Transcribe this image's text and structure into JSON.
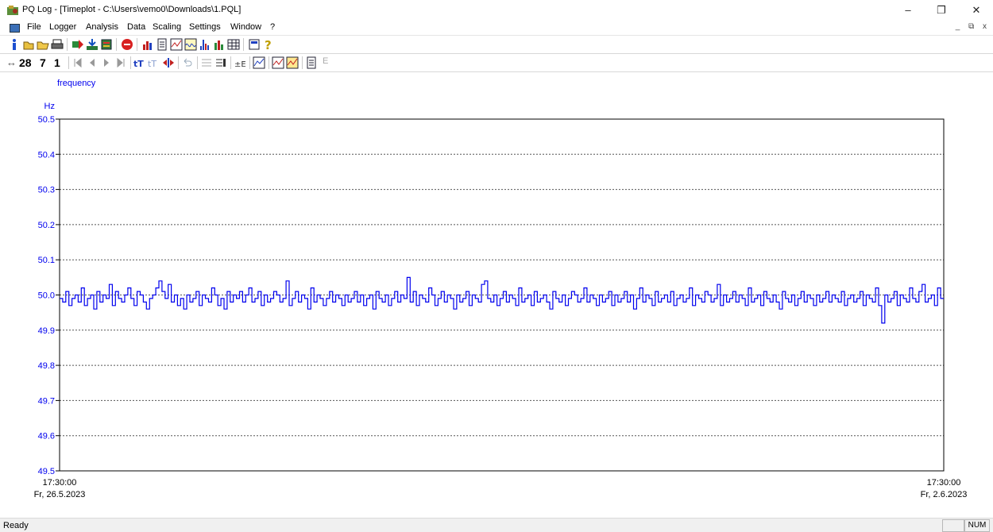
{
  "window": {
    "title": "PQ Log - [Timeplot - C:\\Users\\vemo0\\Downloads\\1.PQL]",
    "minimize_glyph": "–",
    "restore_glyph": "❐",
    "close_glyph": "✕"
  },
  "menu": {
    "items": [
      "File",
      "Logger",
      "Analysis",
      "Data",
      "Scaling",
      "Settings",
      "Window",
      "?"
    ],
    "mdi_controls": "_ ⧉ x"
  },
  "toolbar2": {
    "arrows": "↔",
    "zoom_28": "28",
    "zoom_7": "7",
    "zoom_1": "1",
    "e_label": "E"
  },
  "status": {
    "text": "Ready",
    "num": "NUM"
  },
  "chart_data": {
    "type": "line",
    "title": "frequency",
    "unit": "Hz",
    "ylim": [
      49.5,
      50.5
    ],
    "yticks": [
      "50.5",
      "50.4",
      "50.3",
      "50.2",
      "50.1",
      "50.0",
      "49.9",
      "49.8",
      "49.7",
      "49.6",
      "49.5"
    ],
    "x_start": {
      "time": "17:30:00",
      "date": "Fr, 26.5.2023"
    },
    "x_end": {
      "time": "17:30:00",
      "date": "Fr, 2.6.2023"
    },
    "grid": "dotted horizontal",
    "series": [
      {
        "color": "#0000ee",
        "stepped": true,
        "values": [
          49.99,
          49.98,
          50.01,
          49.97,
          49.99,
          50.0,
          49.98,
          50.02,
          49.97,
          49.99,
          50.0,
          49.96,
          50.01,
          49.98,
          50.0,
          49.99,
          50.03,
          49.97,
          50.01,
          49.99,
          49.98,
          50.0,
          50.02,
          49.99,
          49.97,
          50.01,
          50.0,
          49.98,
          49.96,
          49.99,
          50.0,
          50.02,
          50.04,
          50.01,
          49.99,
          50.03,
          49.98,
          50.0,
          49.97,
          49.99,
          49.96,
          50.0,
          49.98,
          49.99,
          50.01,
          49.97,
          50.0,
          49.99,
          49.98,
          50.02,
          50.0,
          49.97,
          49.99,
          49.96,
          50.01,
          49.98,
          50.0,
          49.99,
          50.01,
          49.98,
          50.0,
          50.02,
          49.98,
          49.99,
          50.01,
          49.97,
          50.0,
          49.98,
          49.99,
          50.01,
          50.0,
          49.98,
          49.99,
          50.04,
          49.97,
          49.99,
          50.01,
          49.98,
          50.0,
          49.99,
          49.96,
          50.02,
          49.98,
          50.0,
          49.99,
          49.97,
          49.99,
          50.01,
          49.98,
          50.0,
          49.99,
          49.97,
          50.0,
          49.98,
          49.99,
          50.01,
          49.98,
          50.0,
          49.97,
          49.99,
          50.0,
          49.96,
          50.01,
          49.99,
          49.98,
          50.0,
          49.97,
          49.99,
          50.01,
          49.98,
          50.0,
          49.99,
          50.05,
          49.98,
          50.01,
          49.97,
          50.0,
          49.99,
          49.98,
          50.02,
          50.0,
          49.97,
          49.99,
          50.01,
          49.98,
          50.0,
          49.99,
          49.96,
          50.0,
          49.98,
          49.99,
          50.01,
          49.97,
          50.0,
          49.99,
          49.98,
          50.03,
          50.04,
          49.99,
          49.98,
          50.0,
          49.97,
          49.99,
          50.01,
          49.98,
          50.0,
          49.99,
          49.97,
          50.02,
          49.98,
          49.99,
          50.0,
          49.97,
          50.01,
          49.98,
          49.99,
          50.0,
          49.98,
          49.96,
          50.01,
          49.99,
          49.98,
          50.0,
          49.97,
          49.99,
          50.01,
          50.0,
          49.98,
          49.99,
          50.02,
          49.98,
          50.0,
          49.99,
          49.97,
          50.0,
          49.98,
          49.99,
          50.01,
          49.97,
          50.0,
          49.98,
          49.99,
          50.01,
          49.98,
          50.0,
          49.96,
          49.99,
          50.02,
          49.98,
          50.0,
          49.99,
          49.97,
          50.01,
          49.98,
          49.99,
          50.0,
          49.98,
          50.01,
          49.97,
          49.99,
          50.0,
          49.98,
          49.99,
          50.02,
          49.97,
          50.0,
          49.99,
          49.98,
          50.01,
          50.0,
          49.98,
          49.99,
          50.03,
          49.97,
          50.0,
          49.98,
          49.99,
          50.01,
          49.98,
          50.0,
          49.99,
          49.97,
          50.02,
          49.98,
          49.99,
          50.0,
          49.97,
          50.01,
          49.99,
          49.98,
          50.0,
          49.98,
          49.96,
          50.01,
          49.99,
          49.98,
          50.0,
          49.97,
          49.99,
          50.01,
          49.98,
          50.0,
          49.99,
          49.97,
          50.0,
          49.98,
          49.99,
          50.01,
          49.98,
          50.0,
          49.99,
          49.98,
          50.01,
          49.97,
          49.99,
          50.0,
          49.98,
          49.99,
          50.01,
          49.97,
          50.0,
          49.99,
          49.98,
          50.02,
          49.97,
          49.92,
          50.0,
          49.98,
          49.99,
          50.01,
          49.97,
          50.0,
          49.99,
          49.98,
          50.02,
          49.99,
          49.98,
          50.01,
          50.03,
          49.98,
          49.99,
          50.0,
          49.97,
          50.02,
          49.99
        ]
      }
    ]
  }
}
